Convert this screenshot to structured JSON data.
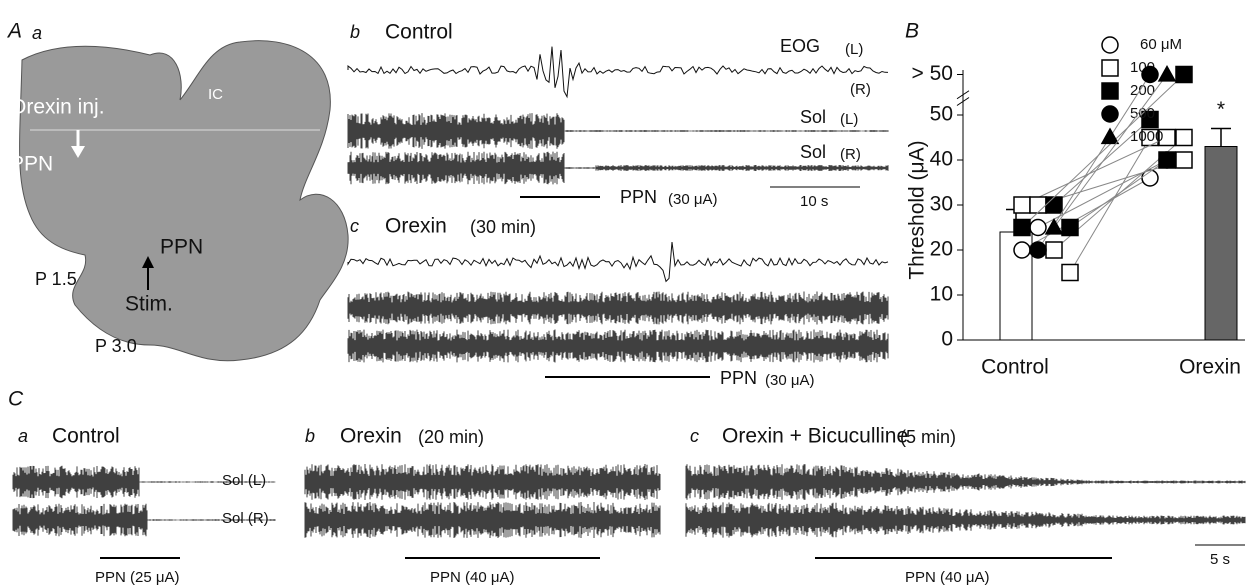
{
  "panel_A": {
    "label": "A",
    "sub": "a",
    "orexin_inj": "Orexin inj.",
    "ppn_top": "PPN",
    "ic": "IC",
    "ppn_mid": "PPN",
    "stim": "Stim.",
    "p15": "P 1.5",
    "p30": "P 3.0"
  },
  "panel_Ab": {
    "sub": "b",
    "title": "Control",
    "eog": "EOG",
    "eog_l": "(L)",
    "eog_r": "(R)",
    "sol_l": "Sol",
    "sol_l_side": "(L)",
    "sol_r": "Sol",
    "sol_r_side": "(R)",
    "ppn": "PPN",
    "ppn_current": "(30 μA)",
    "scale": "10 s"
  },
  "panel_Ac": {
    "sub": "c",
    "title": "Orexin",
    "time": "(30 min)",
    "ppn": "PPN",
    "ppn_current": "(30 μA)"
  },
  "chart_data": {
    "type": "bar",
    "panel_label": "B",
    "ylabel": "Threshold (μA)",
    "categories": [
      "Control",
      "Orexin"
    ],
    "values": [
      24,
      43
    ],
    "errors": [
      5,
      4
    ],
    "colors": [
      "#ffffff",
      "#666666"
    ],
    "significance": "*",
    "ylim": [
      0,
      60
    ],
    "yticks": [
      0,
      10,
      20,
      30,
      40,
      50,
      {
        "value": 59,
        "label": "> 50"
      }
    ],
    "series": [
      {
        "name": "60 μM",
        "marker": "circle",
        "fill": "#ffffff",
        "control": [
          20,
          25
        ],
        "orexin": [
          36,
          40
        ]
      },
      {
        "name": "100",
        "marker": "square",
        "fill": "#ffffff",
        "control": [
          20,
          15,
          30,
          30
        ],
        "orexin": [
          45,
          45,
          45,
          40
        ]
      },
      {
        "name": "200",
        "marker": "square",
        "fill": "#000000",
        "control": [
          30,
          25,
          25
        ],
        "orexin": [
          49,
          40,
          59
        ]
      },
      {
        "name": "500",
        "marker": "circle",
        "fill": "#000000",
        "control": [
          20
        ],
        "orexin": [
          59
        ]
      },
      {
        "name": "1000",
        "marker": "triangle",
        "fill": "#000000",
        "control": [
          25
        ],
        "orexin": [
          59
        ]
      }
    ]
  },
  "panel_C": {
    "label": "C",
    "a_sub": "a",
    "a_title": "Control",
    "sol_l": "Sol (L)",
    "sol_r": "Sol (R)",
    "a_ppn": "PPN (25 μA)",
    "b_sub": "b",
    "b_title": "Orexin",
    "b_time": "(20 min)",
    "b_ppn": "PPN (40 μA)",
    "c_sub": "c",
    "c_title": "Orexin + Bicuculline",
    "c_time": "(5 min)",
    "c_ppn": "PPN (40 μA)",
    "scale": "5 s"
  }
}
